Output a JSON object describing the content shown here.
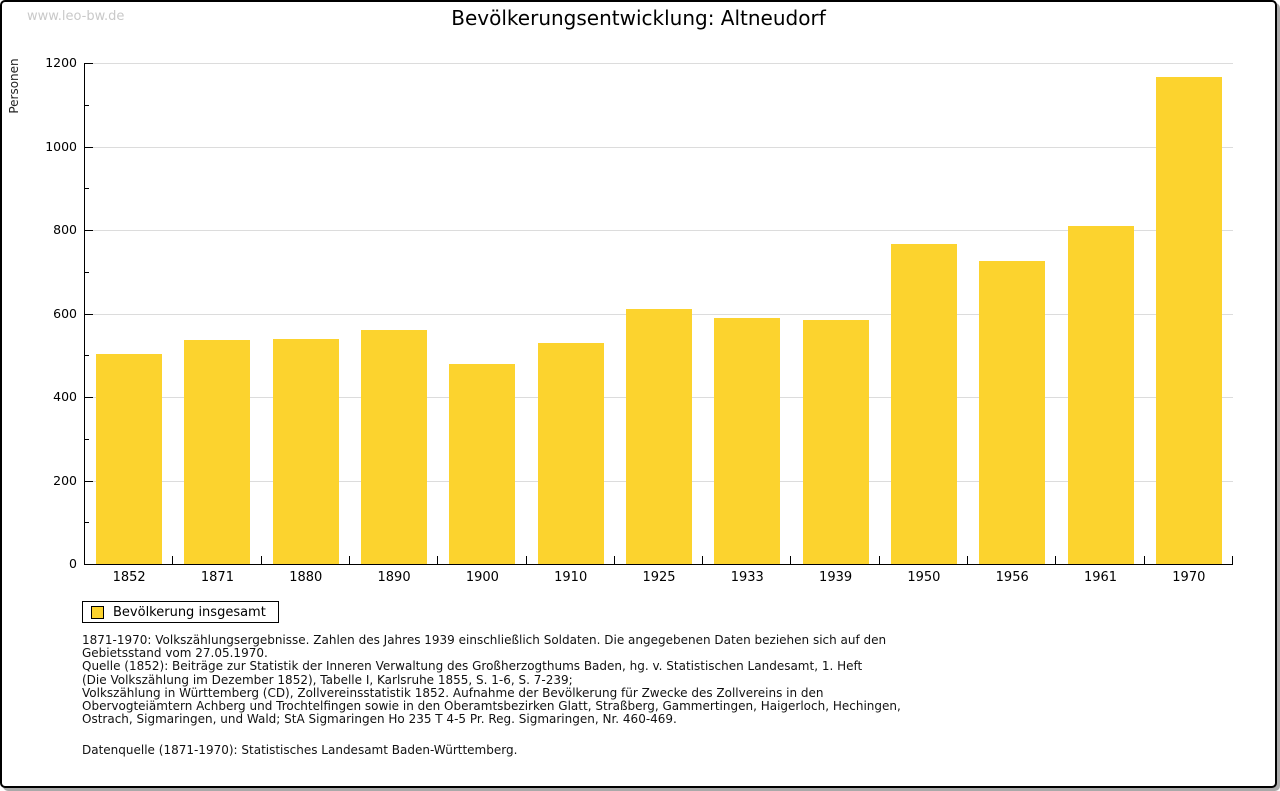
{
  "watermark": "www.leo-bw.de",
  "title": "Bevölkerungsentwicklung: Altneudorf",
  "chart_data": {
    "type": "bar",
    "title": "Bevölkerungsentwicklung: Altneudorf",
    "categories": [
      "1852",
      "1871",
      "1880",
      "1890",
      "1900",
      "1910",
      "1925",
      "1933",
      "1939",
      "1950",
      "1956",
      "1961",
      "1970"
    ],
    "values": [
      503,
      537,
      539,
      561,
      478,
      529,
      610,
      590,
      584,
      766,
      725,
      810,
      1166
    ],
    "xlabel": "",
    "ylabel": "Personen",
    "ylim": [
      0,
      1200
    ],
    "ytick_step": 200,
    "yminor_step": 100,
    "grid": true,
    "bar_color": "#fcd32e",
    "gridline_color": "#dcdcdc",
    "legend_position": "bottom-left",
    "legend": [
      {
        "label": "Bevölkerung insgesamt",
        "color": "#fcd32e"
      }
    ]
  },
  "footnotes": {
    "lines": [
      "1871-1970: Volkszählungsergebnisse. Zahlen des Jahres 1939 einschließlich Soldaten. Die angegebenen Daten beziehen sich auf den",
      "Gebietsstand vom 27.05.1970.",
      "Quelle (1852): Beiträge zur Statistik der Inneren Verwaltung des Großherzogthums Baden, hg. v. Statistischen Landesamt, 1. Heft",
      "(Die Volkszählung im Dezember 1852), Tabelle I, Karlsruhe 1855, S. 1-6, S. 7-239;",
      "Volkszählung in Württemberg (CD), Zollvereinsstatistik 1852. Aufnahme der Bevölkerung für Zwecke des Zollvereins in den",
      "Obervogteiämtern Achberg und Trochtelfingen sowie in den Oberamtsbezirken Glatt, Straßberg, Gammertingen, Haigerloch, Hechingen,",
      "Ostrach, Sigmaringen, und Wald; StA Sigmaringen Ho 235 T 4-5 Pr. Reg. Sigmaringen, Nr. 460-469."
    ],
    "datasource": "Datenquelle (1871-1970): Statistisches Landesamt Baden-Württemberg."
  }
}
